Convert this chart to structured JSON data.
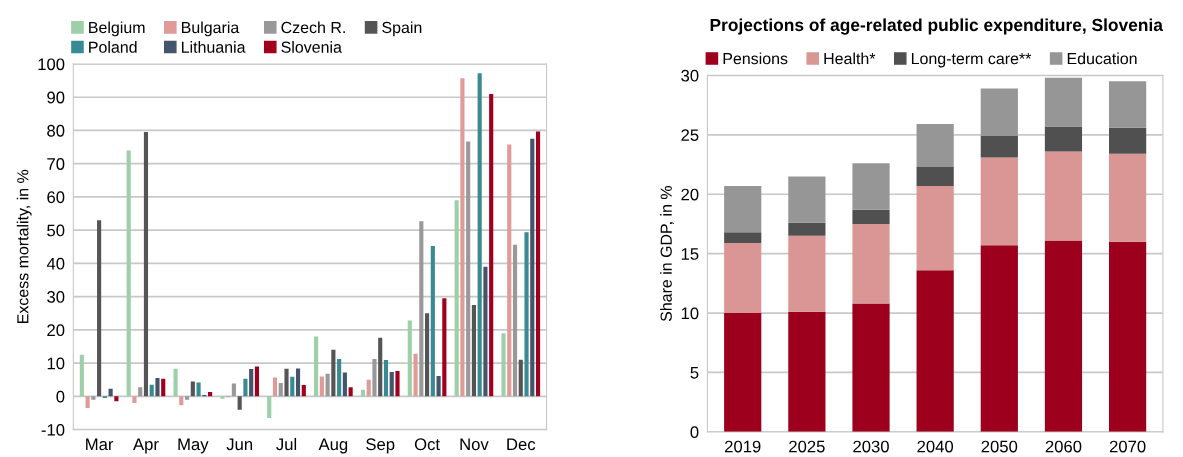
{
  "chart_data": [
    {
      "type": "bar",
      "ylabel": "Excess mortality, in %",
      "categories": [
        "Mar",
        "Apr",
        "May",
        "Jun",
        "Jul",
        "Aug",
        "Sep",
        "Oct",
        "Nov",
        "Dec"
      ],
      "series": [
        {
          "name": "Belgium",
          "color": "#9dcfa8",
          "values": [
            12.5,
            74,
            8.3,
            -0.7,
            -6.5,
            18,
            2,
            22.8,
            59,
            19
          ]
        },
        {
          "name": "Bulgaria",
          "color": "#e09a98",
          "values": [
            -3.5,
            -2,
            -2.7,
            -0.3,
            5.7,
            6,
            5,
            12.8,
            95.7,
            75.8
          ]
        },
        {
          "name": "Czech R.",
          "color": "#999999",
          "values": [
            -1,
            2.7,
            -1,
            3.9,
            4,
            6.8,
            11.2,
            52.7,
            76.7,
            45.6
          ]
        },
        {
          "name": "Spain",
          "color": "#555555",
          "values": [
            53,
            79.5,
            4.5,
            -4,
            8.3,
            14,
            17.6,
            25,
            27.5,
            11
          ]
        },
        {
          "name": "Poland",
          "color": "#3a8a93",
          "values": [
            -0.5,
            3.5,
            4.2,
            5.3,
            5.9,
            11.2,
            10.9,
            45.2,
            97.2,
            49.4
          ]
        },
        {
          "name": "Lithuania",
          "color": "#44546a",
          "values": [
            2.3,
            5.5,
            0.4,
            8.2,
            8.4,
            7.2,
            7.3,
            6.1,
            39,
            77.5
          ]
        },
        {
          "name": "Slovenia",
          "color": "#a0001e",
          "values": [
            -1.5,
            5.3,
            1.3,
            9,
            3.4,
            2.7,
            7.6,
            29.5,
            91,
            79.7
          ]
        }
      ],
      "ylim": [
        -10,
        100
      ],
      "yticks": [
        -10,
        0,
        10,
        20,
        30,
        40,
        50,
        60,
        70,
        80,
        90,
        100
      ],
      "grid": "y",
      "legend": "top"
    },
    {
      "type": "bar",
      "title": "Projections of age-related public expenditure, Slovenia",
      "ylabel": "Share in GDP, in %",
      "stacked": true,
      "categories": [
        "2019",
        "2025",
        "2030",
        "2040",
        "2050",
        "2060",
        "2070"
      ],
      "series": [
        {
          "name": "Pensions",
          "color": "#9c001c",
          "values": [
            10,
            10.1,
            10.8,
            13.6,
            15.7,
            16.1,
            16.0
          ]
        },
        {
          "name": "Health*",
          "color": "#d99694",
          "values": [
            5.9,
            6.4,
            6.7,
            7.1,
            7.4,
            7.5,
            7.4
          ]
        },
        {
          "name": "Long-term care**",
          "color": "#505050",
          "values": [
            0.9,
            1.1,
            1.2,
            1.6,
            1.8,
            2.1,
            2.2
          ]
        },
        {
          "name": "Education",
          "color": "#969696",
          "values": [
            3.9,
            3.9,
            3.9,
            3.6,
            4.0,
            4.1,
            3.9
          ]
        }
      ],
      "ylim": [
        0,
        30
      ],
      "yticks": [
        0,
        5,
        10,
        15,
        20,
        25,
        30
      ],
      "grid": "y",
      "legend": "top"
    }
  ]
}
